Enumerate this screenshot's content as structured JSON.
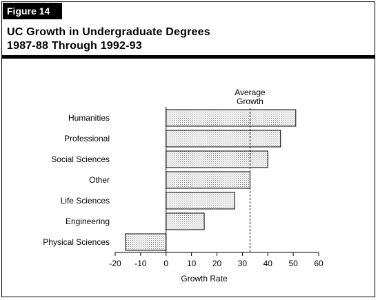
{
  "figure_label": "Figure 14",
  "title_line1": "UC Growth in Undergraduate Degrees",
  "title_line2": "1987-88 Through 1992-93",
  "chart_data": {
    "type": "bar",
    "orientation": "horizontal",
    "categories": [
      "Humanities",
      "Professional",
      "Social Sciences",
      "Other",
      "Life Sciences",
      "Engineering",
      "Physical Sciences"
    ],
    "values": [
      51,
      45,
      40,
      33,
      27,
      15,
      -16
    ],
    "xlabel": "Growth Rate",
    "xlim": [
      -20,
      60
    ],
    "xticks": [
      -20,
      -10,
      0,
      10,
      20,
      30,
      40,
      50,
      60
    ],
    "reference_line": {
      "value": 33,
      "label_line1": "Average",
      "label_line2": "Growth",
      "style": "dashed"
    },
    "bar_fill": "#d9d9d9",
    "grid": false
  }
}
